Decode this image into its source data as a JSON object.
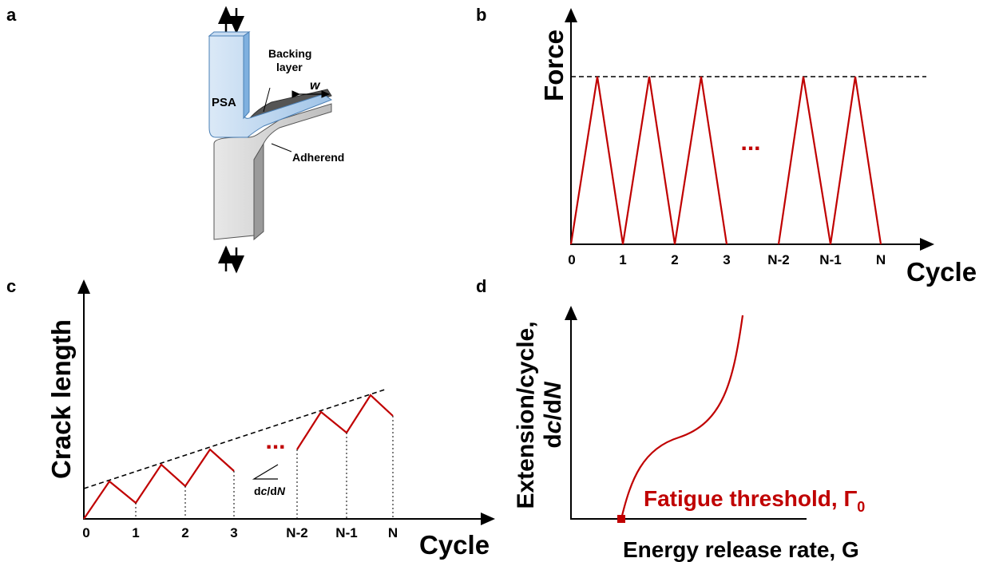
{
  "panels": [
    {
      "label": "a",
      "psa": "PSA",
      "backing": [
        "Backing",
        "layer"
      ],
      "width": "w",
      "adherend": "Adherend"
    },
    {
      "label": "b",
      "y_label": "Force",
      "x_label": "Cycle",
      "x_ticks": [
        "0",
        "1",
        "2",
        "3",
        "N-2",
        "N-1",
        "N"
      ],
      "ellipsis": "..."
    },
    {
      "label": "c",
      "y_label": "Crack length",
      "x_label": "Cycle",
      "x_ticks": [
        "0",
        "1",
        "2",
        "3",
        "N-2",
        "N-1",
        "N"
      ],
      "ellipsis": "...",
      "slope": [
        "d",
        "c",
        "/d",
        "N"
      ]
    },
    {
      "label": "d",
      "y_label": [
        "Extension/cycle,",
        [
          "d",
          "c",
          "/d",
          "N"
        ]
      ],
      "x_label": "Energy release rate, G",
      "threshold": [
        "Fatigue threshold, Γ",
        "0"
      ]
    }
  ]
}
